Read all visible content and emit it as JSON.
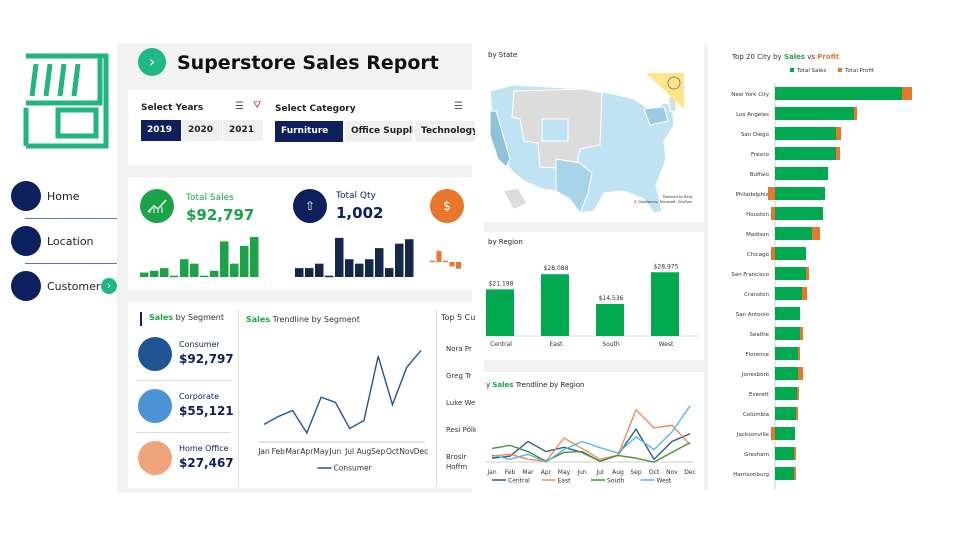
{
  "sidebar": {
    "items": [
      {
        "label": "Home",
        "icon": "home-icon"
      },
      {
        "label": "Location",
        "icon": "location-icon"
      },
      {
        "label": "Customer",
        "icon": "customer-icon",
        "active": true
      }
    ]
  },
  "header": {
    "title": "Superstore Sales Report"
  },
  "filters": {
    "years_label": "Select Years",
    "years": [
      "2019",
      "2020",
      "2021"
    ],
    "year_selected": "2019",
    "category_label": "Select Category",
    "categories": [
      "Furniture",
      "Office Suppli...",
      "Technology"
    ],
    "category_selected": "Furniture"
  },
  "kpis": [
    {
      "label": "Total Sales",
      "value": "$92,797",
      "color": "#1ca34a",
      "bars": [
        10,
        14,
        20,
        3,
        40,
        30,
        3,
        14,
        80,
        30,
        70,
        90
      ]
    },
    {
      "label": "Total Qty",
      "value": "1,002",
      "color": "#14284b",
      "bars": [
        20,
        20,
        30,
        3,
        88,
        40,
        30,
        40,
        65,
        20,
        75,
        85
      ]
    },
    {
      "label": "",
      "value": "",
      "color": "#e8772e",
      "bars": [
        3,
        25,
        3,
        -10,
        -15
      ]
    }
  ],
  "segments": {
    "title_a": "Sales",
    "title_b": " by Segment",
    "items": [
      {
        "name": "Consumer",
        "value": "$92,797",
        "color": "#1f5595"
      },
      {
        "name": "Corporate",
        "value": "$55,121",
        "color": "#4b93d6"
      },
      {
        "name": "Home Office",
        "value": "$27,467",
        "color": "#f0a47c"
      }
    ]
  },
  "top5": {
    "title": "Top 5 Cu",
    "names": [
      "Nora Pr",
      "Greg Tr",
      "Luke We",
      "Resi Pölki",
      "Brosir Hoffm"
    ]
  },
  "map": {
    "title": "by State",
    "attribution_a": "Powered by Bing",
    "attribution_b": "© GeoNames, Microsoft, TomTom"
  },
  "chart_data": [
    {
      "type": "line",
      "title_a": "Sales",
      "title_b": " Trendline by Segment",
      "x": [
        "Jan",
        "Feb",
        "Mar",
        "Apr",
        "May",
        "Jun",
        "Jul",
        "Aug",
        "Sep",
        "Oct",
        "Nov",
        "Dec"
      ],
      "series": [
        {
          "name": "Consumer",
          "color": "#1f5595",
          "values": [
            52,
            75,
            93,
            27,
            132,
            117,
            40,
            63,
            253,
            110,
            220,
            270
          ]
        }
      ]
    },
    {
      "type": "bar",
      "title": "by Region",
      "categories": [
        "Central",
        "East",
        "South",
        "West"
      ],
      "values": [
        21198,
        28088,
        14536,
        28975
      ],
      "labels": [
        "$21,198",
        "$28,088",
        "$14,536",
        "$28,975"
      ],
      "color": "#00a94f"
    },
    {
      "type": "line",
      "title_a": "y ",
      "title_b": "Sales",
      "title_c": " Trendline by Region",
      "x": [
        "Jan",
        "Feb",
        "Mar",
        "Apr",
        "May",
        "Jun",
        "Jul",
        "Aug",
        "Sep",
        "Oct",
        "Nov",
        "Dec"
      ],
      "series": [
        {
          "name": "Central",
          "color": "#2e5e8a",
          "values": [
            10,
            15,
            53,
            27,
            38,
            25,
            2,
            18,
            85,
            7,
            53,
            73
          ]
        },
        {
          "name": "East",
          "color": "#ec8f5e",
          "values": [
            15,
            20,
            7,
            2,
            62,
            35,
            7,
            18,
            135,
            88,
            95,
            45
          ]
        },
        {
          "name": "South",
          "color": "#4f8f3d",
          "values": [
            35,
            43,
            27,
            2,
            25,
            27,
            2,
            17,
            10,
            0,
            25,
            50
          ]
        },
        {
          "name": "West",
          "color": "#5ab8de",
          "values": [
            18,
            7,
            20,
            0,
            32,
            53,
            37,
            23,
            65,
            32,
            78,
            145
          ]
        }
      ]
    },
    {
      "type": "bar",
      "orientation": "horizontal",
      "stacked": true,
      "title_a": "Top 20 City by ",
      "title_b": "Sales",
      "title_c": " vs ",
      "title_d": "Profit",
      "legend": [
        "Total Sales",
        "Total Profit"
      ],
      "colors": [
        "#00a94f",
        "#e8772e"
      ],
      "categories": [
        "New York City",
        "Los Angeles",
        "San Diego",
        "Fresno",
        "Buffalo",
        "Philadelphia",
        "Houston",
        "Madison",
        "Chicago",
        "San Francisco",
        "Cranston",
        "San Antonio",
        "Seattle",
        "Florence",
        "Jonesboro",
        "Everett",
        "Columbia",
        "Jacksonville",
        "Gresham",
        "Harrisonburg"
      ],
      "series": [
        {
          "name": "Total Sales",
          "values": [
            127,
            79,
            61,
            61,
            53,
            50,
            48,
            37,
            31,
            31,
            27,
            25,
            25,
            23,
            23,
            22,
            21,
            20,
            19,
            19
          ]
        },
        {
          "name": "Total Profit",
          "values": [
            10,
            3,
            5,
            4,
            0,
            -7,
            -4,
            8,
            -4,
            3,
            5,
            0,
            3,
            2,
            5,
            2,
            2,
            -4,
            2,
            2
          ]
        }
      ]
    }
  ]
}
